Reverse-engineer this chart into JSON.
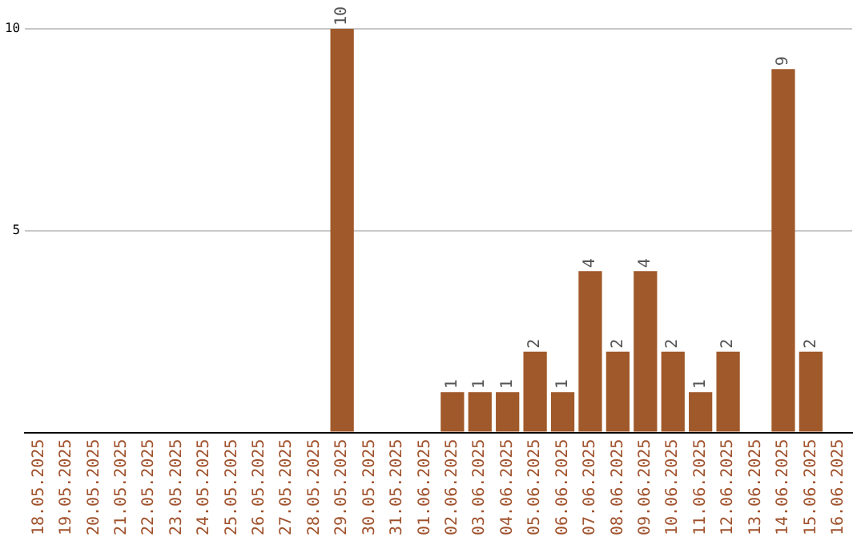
{
  "chart_data": {
    "type": "bar",
    "categories": [
      "18.05.2025",
      "19.05.2025",
      "20.05.2025",
      "21.05.2025",
      "22.05.2025",
      "23.05.2025",
      "24.05.2025",
      "25.05.2025",
      "26.05.2025",
      "27.05.2025",
      "28.05.2025",
      "29.05.2025",
      "30.05.2025",
      "31.05.2025",
      "01.06.2025",
      "02.06.2025",
      "03.06.2025",
      "04.06.2025",
      "05.06.2025",
      "06.06.2025",
      "07.06.2025",
      "08.06.2025",
      "09.06.2025",
      "10.06.2025",
      "11.06.2025",
      "12.06.2025",
      "13.06.2025",
      "14.06.2025",
      "15.06.2025",
      "16.06.2025"
    ],
    "values": [
      0,
      0,
      0,
      0,
      0,
      0,
      0,
      0,
      0,
      0,
      0,
      10,
      0,
      0,
      0,
      1,
      1,
      1,
      2,
      1,
      4,
      2,
      4,
      2,
      1,
      2,
      0,
      9,
      2,
      0
    ],
    "value_labels": [
      null,
      null,
      null,
      null,
      null,
      null,
      null,
      null,
      null,
      null,
      null,
      "10",
      null,
      null,
      null,
      "1",
      "1",
      "1",
      "2",
      "1",
      "4",
      "2",
      "4",
      "2",
      "1",
      "2",
      null,
      "9",
      "2",
      null
    ],
    "color": "#a0592a",
    "ylim": [
      0,
      10
    ],
    "yticks": [
      {
        "value": 0,
        "label": null
      },
      5,
      10
    ],
    "grid": "y",
    "legend": false
  }
}
